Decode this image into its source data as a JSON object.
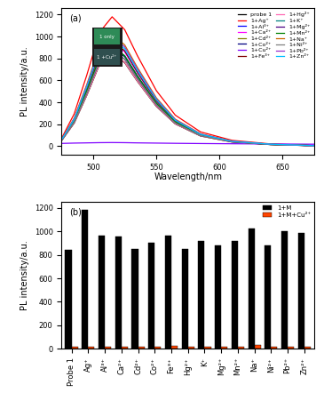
{
  "chart_data": [
    {
      "type": "line",
      "title": "(a)",
      "x_label": "Wavelength/nm",
      "y_label": "PL intensity/a.u.",
      "annotations": [
        "1 only",
        "1 +Cu²⁺"
      ],
      "x": [
        475,
        485,
        495,
        505,
        515,
        525,
        535,
        550,
        565,
        585,
        610,
        640,
        675
      ],
      "xlim": [
        475,
        675
      ],
      "xticks": [
        500,
        550,
        600,
        650
      ],
      "ylim": [
        -80,
        1260
      ],
      "yticks": [
        0,
        200,
        400,
        600,
        800,
        1000,
        1200
      ],
      "legend": "upper right",
      "series": [
        {
          "name": "probe 1",
          "color": "#000000",
          "values": [
            51,
            211,
            465,
            744,
            845,
            761,
            592,
            363,
            203,
            93,
            38,
            15,
            4
          ]
        },
        {
          "name": "1+Ag⁺",
          "color": "#ff0000",
          "values": [
            71,
            295,
            649,
            1038,
            1180,
            1062,
            826,
            507,
            283,
            130,
            53,
            21,
            6
          ]
        },
        {
          "name": "1+Al³⁺",
          "color": "#0000ff",
          "values": [
            58,
            240,
            528,
            845,
            960,
            864,
            672,
            413,
            230,
            106,
            43,
            17,
            5
          ]
        },
        {
          "name": "1+Ca²⁺",
          "color": "#ff00ff",
          "values": [
            57,
            239,
            525,
            840,
            955,
            860,
            669,
            411,
            229,
            105,
            43,
            17,
            5
          ]
        },
        {
          "name": "1+Cd²⁺",
          "color": "#808000",
          "values": [
            51,
            213,
            468,
            748,
            850,
            765,
            595,
            366,
            204,
            94,
            38,
            15,
            4
          ]
        },
        {
          "name": "1+Co²⁺",
          "color": "#000080",
          "values": [
            54,
            226,
            498,
            796,
            905,
            815,
            634,
            389,
            217,
            100,
            41,
            16,
            5
          ]
        },
        {
          "name": "1+Cu²⁺",
          "color": "#7f00ff",
          "values": [
            25,
            28,
            30,
            32,
            33,
            32,
            30,
            28,
            26,
            24,
            22,
            20,
            18
          ]
        },
        {
          "name": "1+Fe³⁺",
          "color": "#800000",
          "values": [
            58,
            241,
            531,
            849,
            965,
            869,
            676,
            415,
            232,
            106,
            43,
            17,
            5
          ]
        },
        {
          "name": "1+Hg²⁺",
          "color": "#ff69b4",
          "values": [
            51,
            213,
            468,
            748,
            850,
            765,
            595,
            366,
            204,
            94,
            38,
            15,
            4
          ]
        },
        {
          "name": "1+K⁺",
          "color": "#008080",
          "values": [
            55,
            229,
            503,
            805,
            915,
            824,
            641,
            393,
            220,
            101,
            41,
            16,
            5
          ]
        },
        {
          "name": "1+Mg²⁺",
          "color": "#4b0082",
          "values": [
            53,
            220,
            484,
            774,
            880,
            792,
            616,
            378,
            211,
            97,
            40,
            16,
            4
          ]
        },
        {
          "name": "1+Mn²⁺",
          "color": "#008000",
          "values": [
            55,
            229,
            503,
            805,
            915,
            824,
            641,
            393,
            220,
            101,
            41,
            16,
            5
          ]
        },
        {
          "name": "1+Na⁺",
          "color": "#cc6600",
          "values": [
            62,
            256,
            564,
            902,
            1025,
            923,
            718,
            441,
            246,
            113,
            46,
            18,
            5
          ]
        },
        {
          "name": "1+Ni²⁺",
          "color": "#808080",
          "values": [
            53,
            220,
            484,
            774,
            880,
            792,
            616,
            378,
            211,
            97,
            40,
            16,
            4
          ]
        },
        {
          "name": "1+Pb²⁺",
          "color": "#9932cc",
          "values": [
            60,
            251,
            553,
            884,
            1005,
            905,
            704,
            432,
            241,
            111,
            45,
            18,
            5
          ]
        },
        {
          "name": "1+Zn²⁺",
          "color": "#00bfff",
          "values": [
            59,
            246,
            542,
            867,
            985,
            887,
            690,
            424,
            236,
            108,
            44,
            18,
            5
          ]
        }
      ]
    },
    {
      "type": "bar",
      "title": "(b)",
      "y_label": "PL intensity/a.u.",
      "categories": [
        "Probe 1",
        "Ag⁺",
        "Al³⁺",
        "Ca²⁺",
        "Cd²⁺",
        "Co²⁺",
        "Fe³⁺",
        "Hg²⁺",
        "K⁺",
        "Mg²⁺",
        "Mn²⁺",
        "Na⁺",
        "Ni²⁺",
        "Pb²⁺",
        "Zn²⁺"
      ],
      "ylim": [
        0,
        1250
      ],
      "yticks": [
        0,
        200,
        400,
        600,
        800,
        1000,
        1200
      ],
      "legend": "upper right",
      "series": [
        {
          "name": "1+M",
          "color": "#000000",
          "values": [
            845,
            1180,
            960,
            955,
            850,
            905,
            965,
            850,
            915,
            880,
            915,
            1025,
            880,
            1005,
            985
          ]
        },
        {
          "name": "1+M+Cu²⁺",
          "color": "#ff4500",
          "values": [
            20,
            15,
            20,
            15,
            15,
            18,
            25,
            20,
            18,
            15,
            15,
            35,
            18,
            15,
            15
          ]
        }
      ]
    }
  ]
}
